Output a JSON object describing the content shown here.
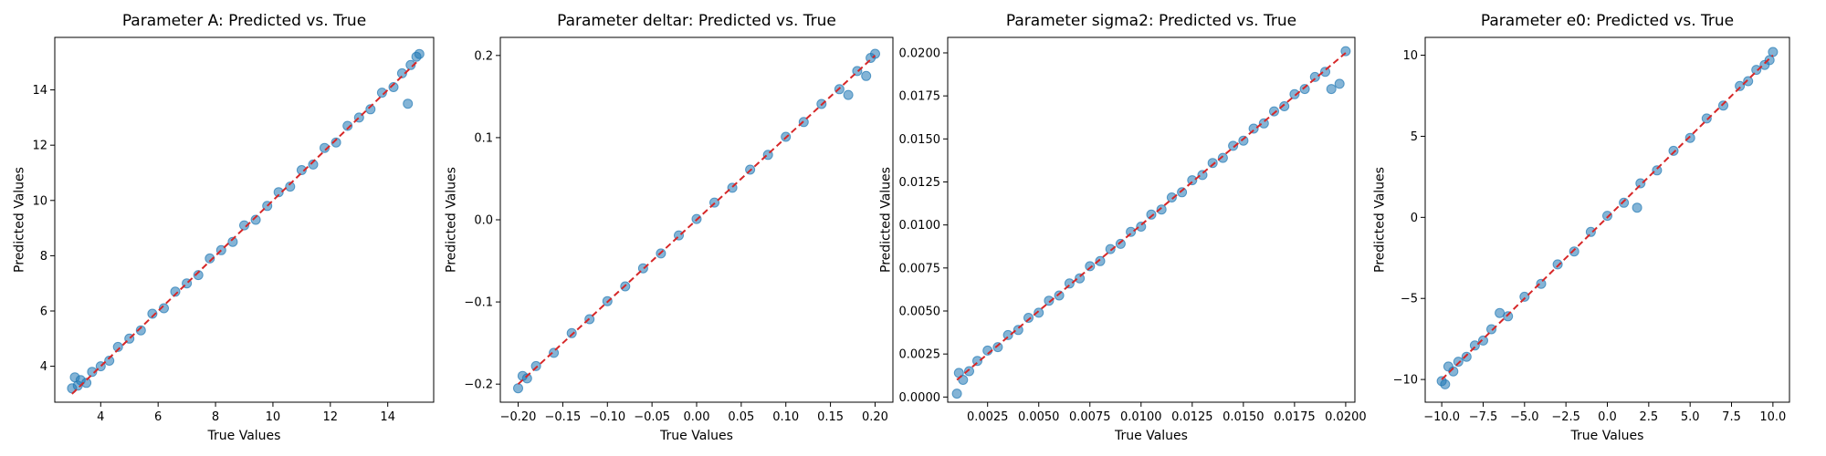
{
  "chart_data": [
    {
      "type": "scatter",
      "title": "Parameter A: Predicted vs. True",
      "xlabel": "True Values",
      "ylabel": "Predicted Values",
      "xlim": [
        2.4,
        15.6
      ],
      "ylim": [
        2.7,
        15.9
      ],
      "xticks": [
        4,
        6,
        8,
        10,
        12,
        14
      ],
      "xtick_labels": [
        "4",
        "6",
        "8",
        "10",
        "12",
        "14"
      ],
      "yticks": [
        4,
        6,
        8,
        10,
        12,
        14
      ],
      "ytick_labels": [
        "4",
        "6",
        "8",
        "10",
        "12",
        "14"
      ],
      "grid": false,
      "series": [
        {
          "x": [
            3.0,
            3.1,
            3.2,
            3.3,
            3.5,
            3.7,
            4.0,
            4.3,
            4.6,
            5.0,
            5.4,
            5.8,
            6.2,
            6.6,
            7.0,
            7.4,
            7.8,
            8.2,
            8.6,
            9.0,
            9.4,
            9.8,
            10.2,
            10.6,
            11.0,
            11.4,
            11.8,
            12.2,
            12.6,
            13.0,
            13.4,
            13.8,
            14.2,
            14.5,
            14.7,
            14.8,
            15.0,
            15.1
          ],
          "y": [
            3.2,
            3.6,
            3.3,
            3.5,
            3.4,
            3.8,
            4.0,
            4.2,
            4.7,
            5.0,
            5.3,
            5.9,
            6.1,
            6.7,
            7.0,
            7.3,
            7.9,
            8.2,
            8.5,
            9.1,
            9.3,
            9.8,
            10.3,
            10.5,
            11.1,
            11.3,
            11.9,
            12.1,
            12.7,
            13.0,
            13.3,
            13.9,
            14.1,
            14.6,
            13.5,
            14.9,
            15.2,
            15.3
          ]
        }
      ],
      "reference_line": {
        "x": [
          3.0,
          15.0
        ],
        "y": [
          3.0,
          15.0
        ]
      }
    },
    {
      "type": "scatter",
      "title": "Parameter deltar: Predicted vs. True",
      "xlabel": "True Values",
      "ylabel": "Predicted Values",
      "xlim": [
        -0.22,
        0.22
      ],
      "ylim": [
        -0.222,
        0.222
      ],
      "xticks": [
        -0.2,
        -0.15,
        -0.1,
        -0.05,
        0.0,
        0.05,
        0.1,
        0.15,
        0.2
      ],
      "xtick_labels": [
        "−0.20",
        "−0.15",
        "−0.10",
        "−0.05",
        "0.00",
        "0.05",
        "0.10",
        "0.15",
        "0.20"
      ],
      "yticks": [
        -0.2,
        -0.1,
        0.0,
        0.1,
        0.2
      ],
      "ytick_labels": [
        "−0.2",
        "−0.1",
        "0.0",
        "0.1",
        "0.2"
      ],
      "grid": false,
      "series": [
        {
          "x": [
            -0.2,
            -0.195,
            -0.19,
            -0.18,
            -0.16,
            -0.14,
            -0.12,
            -0.1,
            -0.08,
            -0.06,
            -0.04,
            -0.02,
            0.0,
            0.02,
            0.04,
            0.06,
            0.08,
            0.1,
            0.12,
            0.14,
            0.16,
            0.17,
            0.18,
            0.19,
            0.195,
            0.2
          ],
          "y": [
            -0.205,
            -0.19,
            -0.193,
            -0.178,
            -0.162,
            -0.138,
            -0.121,
            -0.099,
            -0.081,
            -0.059,
            -0.041,
            -0.019,
            0.001,
            0.021,
            0.039,
            0.061,
            0.079,
            0.101,
            0.119,
            0.141,
            0.159,
            0.152,
            0.181,
            0.175,
            0.197,
            0.202
          ]
        }
      ],
      "reference_line": {
        "x": [
          -0.2,
          0.2
        ],
        "y": [
          -0.2,
          0.2
        ]
      }
    },
    {
      "type": "scatter",
      "title": "Parameter sigma2: Predicted vs. True",
      "xlabel": "True Values",
      "ylabel": "Predicted Values",
      "xlim": [
        0.00055,
        0.02045
      ],
      "ylim": [
        -0.0003,
        0.0209
      ],
      "xticks": [
        0.0025,
        0.005,
        0.0075,
        0.01,
        0.0125,
        0.015,
        0.0175,
        0.02
      ],
      "xtick_labels": [
        "0.0025",
        "0.0050",
        "0.0075",
        "0.0100",
        "0.0125",
        "0.0150",
        "0.0175",
        "0.0200"
      ],
      "yticks": [
        0.0,
        0.0025,
        0.005,
        0.0075,
        0.01,
        0.0125,
        0.015,
        0.0175,
        0.02
      ],
      "ytick_labels": [
        "0.0000",
        "0.0025",
        "0.0050",
        "0.0075",
        "0.0100",
        "0.0125",
        "0.0150",
        "0.0175",
        "0.0200"
      ],
      "grid": false,
      "series": [
        {
          "x": [
            0.001,
            0.0011,
            0.0013,
            0.0016,
            0.002,
            0.0025,
            0.003,
            0.0035,
            0.004,
            0.0045,
            0.005,
            0.0055,
            0.006,
            0.0065,
            0.007,
            0.0075,
            0.008,
            0.0085,
            0.009,
            0.0095,
            0.01,
            0.0105,
            0.011,
            0.0115,
            0.012,
            0.0125,
            0.013,
            0.0135,
            0.014,
            0.0145,
            0.015,
            0.0155,
            0.016,
            0.0165,
            0.017,
            0.0175,
            0.018,
            0.0185,
            0.019,
            0.0193,
            0.0197,
            0.02
          ],
          "y": [
            0.0002,
            0.0014,
            0.001,
            0.0015,
            0.0021,
            0.0027,
            0.0029,
            0.0036,
            0.0039,
            0.0046,
            0.0049,
            0.0056,
            0.0059,
            0.0066,
            0.0069,
            0.0076,
            0.0079,
            0.0086,
            0.0089,
            0.0096,
            0.0099,
            0.0106,
            0.0109,
            0.0116,
            0.0119,
            0.0126,
            0.0129,
            0.0136,
            0.0139,
            0.0146,
            0.0149,
            0.0156,
            0.0159,
            0.0166,
            0.0169,
            0.0176,
            0.0179,
            0.0186,
            0.0189,
            0.0179,
            0.0182,
            0.0201
          ]
        }
      ],
      "reference_line": {
        "x": [
          0.001,
          0.02
        ],
        "y": [
          0.001,
          0.02
        ]
      }
    },
    {
      "type": "scatter",
      "title": "Parameter e0: Predicted vs. True",
      "xlabel": "True Values",
      "ylabel": "Predicted Values",
      "xlim": [
        -11.0,
        11.0
      ],
      "ylim": [
        -11.4,
        11.1
      ],
      "xticks": [
        -10.0,
        -7.5,
        -5.0,
        -2.5,
        0.0,
        2.5,
        5.0,
        7.5,
        10.0
      ],
      "xtick_labels": [
        "−10.0",
        "−7.5",
        "−5.0",
        "−2.5",
        "0.0",
        "2.5",
        "5.0",
        "7.5",
        "10.0"
      ],
      "yticks": [
        -10,
        -5,
        0,
        5,
        10
      ],
      "ytick_labels": [
        "−10",
        "−5",
        "0",
        "5",
        "10"
      ],
      "grid": false,
      "series": [
        {
          "x": [
            -10.0,
            -9.8,
            -9.6,
            -9.3,
            -9.0,
            -8.5,
            -8.0,
            -7.5,
            -7.0,
            -6.5,
            -6.0,
            -5.0,
            -4.0,
            -3.0,
            -2.0,
            -1.0,
            0.0,
            1.0,
            1.8,
            2.0,
            3.0,
            4.0,
            5.0,
            6.0,
            7.0,
            8.0,
            8.5,
            9.0,
            9.5,
            9.8,
            10.0
          ],
          "y": [
            -10.1,
            -10.3,
            -9.2,
            -9.5,
            -8.9,
            -8.6,
            -7.9,
            -7.6,
            -6.9,
            -5.9,
            -6.1,
            -4.9,
            -4.1,
            -2.9,
            -2.1,
            -0.9,
            0.1,
            0.9,
            0.6,
            2.1,
            2.9,
            4.1,
            4.9,
            6.1,
            6.9,
            8.1,
            8.4,
            9.1,
            9.4,
            9.7,
            10.2
          ]
        }
      ],
      "reference_line": {
        "x": [
          -10.0,
          10.0
        ],
        "y": [
          -10.0,
          10.0
        ]
      }
    }
  ],
  "colors": {
    "points": "#1f77b4",
    "reference_line": "#d62728",
    "axes": "#000000"
  }
}
